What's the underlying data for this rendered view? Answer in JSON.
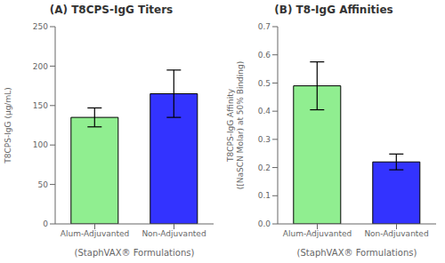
{
  "chart_data": [
    {
      "type": "bar",
      "title": "(A) T8CPS-IgG Titers",
      "categories": [
        "Alum-Adjuvanted",
        "Non-Adjuvanted"
      ],
      "values": [
        135,
        165
      ],
      "errors": [
        12,
        30
      ],
      "colors": [
        "#90EE90",
        "#3333FF"
      ],
      "xlabel": "(StaphVAX® Formulations)",
      "ylabel": "T8CPS-IgG (µg/mL)",
      "ylim": [
        0,
        250
      ],
      "yticks": [
        0,
        50,
        100,
        150,
        200,
        250
      ],
      "grid": false
    },
    {
      "type": "bar",
      "title": "(B) T8-IgG Affinities",
      "categories": [
        "Alum-Adjuvanted",
        "Non-Adjuvanted"
      ],
      "values": [
        0.49,
        0.22
      ],
      "errors": [
        0.085,
        0.028
      ],
      "colors": [
        "#90EE90",
        "#3333FF"
      ],
      "xlabel": "(StaphVAX® Formulations)",
      "ylabel": "T8CPS-IgG Affinity\n([NaSCN Molar) at 50% Binding)",
      "ylim": [
        0,
        0.7
      ],
      "yticks": [
        {
          "value": 0,
          "label": "0.0"
        },
        0.1,
        0.2,
        0.3,
        0.4,
        0.5,
        0.6,
        0.7
      ],
      "grid": false
    }
  ]
}
